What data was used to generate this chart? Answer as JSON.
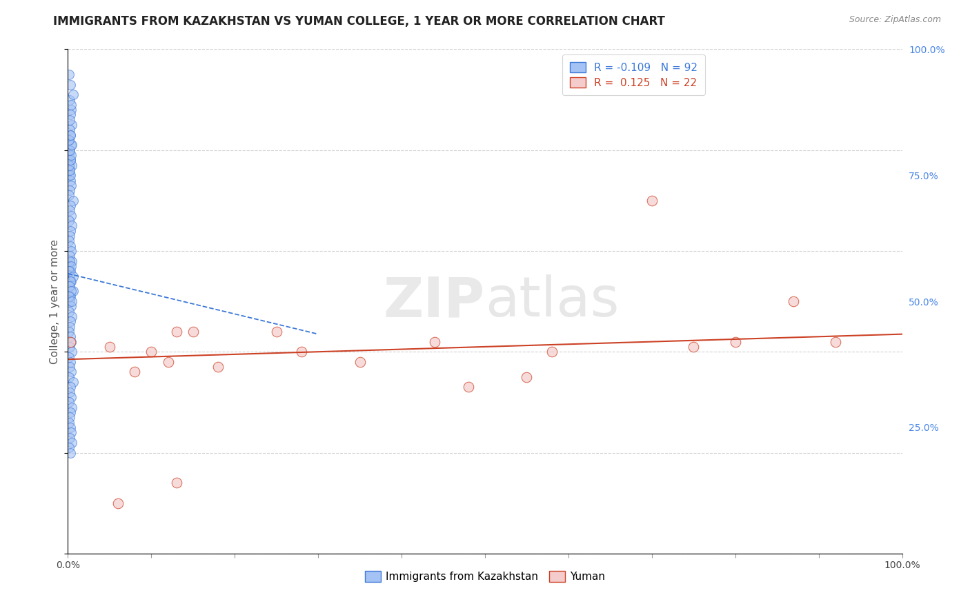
{
  "title": "IMMIGRANTS FROM KAZAKHSTAN VS YUMAN COLLEGE, 1 YEAR OR MORE CORRELATION CHART",
  "source_text": "Source: ZipAtlas.com",
  "ylabel": "College, 1 year or more",
  "watermark_zip": "ZIP",
  "watermark_atlas": "atlas",
  "legend_blue_r": "R = -0.109",
  "legend_blue_n": "N = 92",
  "legend_pink_r": "R =  0.125",
  "legend_pink_n": "N = 22",
  "legend_blue_label": "Immigrants from Kazakhstan",
  "legend_pink_label": "Yuman",
  "blue_color": "#a4c2f4",
  "pink_color": "#f4cccc",
  "blue_edge_color": "#3c78d8",
  "pink_edge_color": "#cc4125",
  "blue_line_color": "#3c78d8",
  "pink_line_color": "#cc4125",
  "background_color": "#ffffff",
  "grid_color": "#cccccc",
  "xlim": [
    0.0,
    1.0
  ],
  "ylim": [
    0.0,
    1.0
  ],
  "xtick_labels": [
    "0.0%",
    "",
    "",
    "",
    "",
    "",
    "",
    "",
    "",
    "",
    "100.0%"
  ],
  "ytick_right_vals": [
    0.25,
    0.5,
    0.75,
    1.0
  ],
  "ytick_right_labels": [
    "25.0%",
    "50.0%",
    "75.0%",
    "100.0%"
  ],
  "blue_x": [
    0.003,
    0.002,
    0.004,
    0.001,
    0.005,
    0.003,
    0.002,
    0.006,
    0.004,
    0.002,
    0.001,
    0.003,
    0.002,
    0.004,
    0.001,
    0.003,
    0.005,
    0.002,
    0.001,
    0.003,
    0.004,
    0.002,
    0.001,
    0.006,
    0.003,
    0.002,
    0.004,
    0.001,
    0.005,
    0.003,
    0.002,
    0.001,
    0.003,
    0.004,
    0.002,
    0.005,
    0.001,
    0.003,
    0.002,
    0.004,
    0.001,
    0.006,
    0.003,
    0.002,
    0.004,
    0.001,
    0.005,
    0.003,
    0.002,
    0.001,
    0.003,
    0.004,
    0.002,
    0.005,
    0.001,
    0.003,
    0.002,
    0.004,
    0.001,
    0.006,
    0.003,
    0.002,
    0.004,
    0.001,
    0.005,
    0.003,
    0.002,
    0.001,
    0.003,
    0.004,
    0.002,
    0.005,
    0.001,
    0.003,
    0.002,
    0.004,
    0.001,
    0.006,
    0.003,
    0.002,
    0.004,
    0.001,
    0.005,
    0.003,
    0.002,
    0.001,
    0.003,
    0.004,
    0.002,
    0.005,
    0.001,
    0.003
  ],
  "blue_y": [
    0.93,
    0.9,
    0.88,
    0.95,
    0.85,
    0.87,
    0.84,
    0.91,
    0.89,
    0.86,
    0.82,
    0.83,
    0.8,
    0.81,
    0.79,
    0.78,
    0.77,
    0.76,
    0.75,
    0.74,
    0.73,
    0.72,
    0.71,
    0.7,
    0.69,
    0.68,
    0.67,
    0.66,
    0.65,
    0.64,
    0.63,
    0.62,
    0.61,
    0.6,
    0.59,
    0.58,
    0.57,
    0.56,
    0.55,
    0.54,
    0.53,
    0.52,
    0.51,
    0.5,
    0.49,
    0.48,
    0.47,
    0.46,
    0.45,
    0.44,
    0.43,
    0.42,
    0.41,
    0.4,
    0.39,
    0.38,
    0.37,
    0.36,
    0.35,
    0.34,
    0.33,
    0.32,
    0.31,
    0.3,
    0.29,
    0.28,
    0.27,
    0.26,
    0.25,
    0.24,
    0.23,
    0.22,
    0.21,
    0.2,
    0.58,
    0.57,
    0.56,
    0.55,
    0.54,
    0.53,
    0.52,
    0.51,
    0.5,
    0.75,
    0.76,
    0.77,
    0.78,
    0.79,
    0.8,
    0.81,
    0.82,
    0.83
  ],
  "pink_x": [
    0.003,
    0.06,
    0.13,
    0.08,
    0.15,
    0.18,
    0.13,
    0.44,
    0.48,
    0.58,
    0.7,
    0.8,
    0.87,
    0.92,
    0.25,
    0.35,
    0.12,
    0.28,
    0.55,
    0.75,
    0.05,
    0.1
  ],
  "pink_y": [
    0.42,
    0.1,
    0.14,
    0.36,
    0.44,
    0.37,
    0.44,
    0.42,
    0.33,
    0.4,
    0.7,
    0.42,
    0.5,
    0.42,
    0.44,
    0.38,
    0.38,
    0.4,
    0.35,
    0.41,
    0.41,
    0.4
  ],
  "blue_trend_x": [
    0.0,
    0.3
  ],
  "blue_trend_y": [
    0.555,
    0.435
  ],
  "pink_trend_x": [
    0.0,
    1.0
  ],
  "pink_trend_y": [
    0.385,
    0.435
  ],
  "title_fontsize": 12,
  "axis_label_fontsize": 11,
  "tick_fontsize": 10,
  "source_fontsize": 9,
  "legend_fontsize": 11
}
